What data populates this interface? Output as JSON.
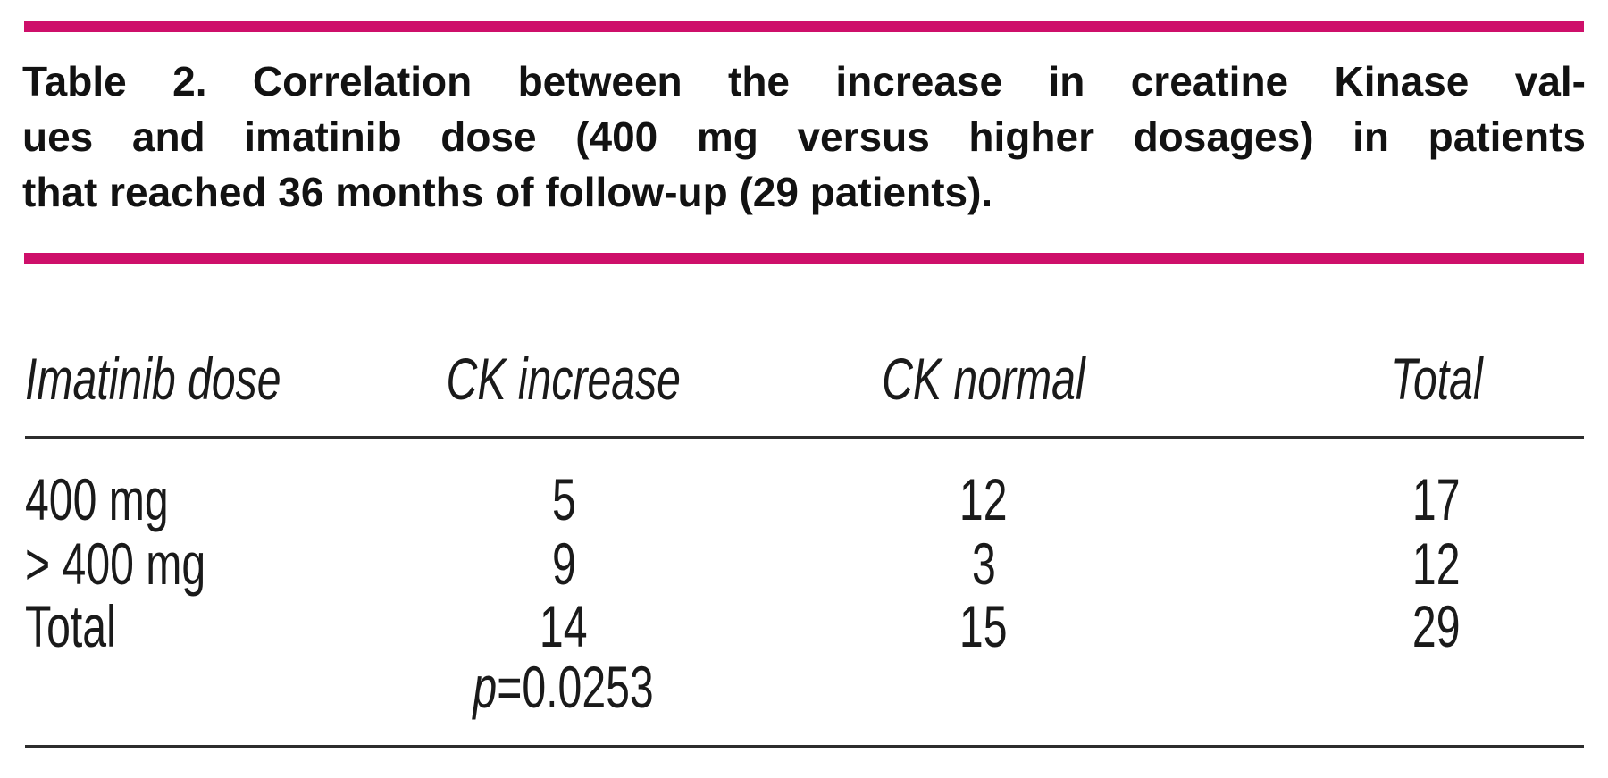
{
  "accent_color": "#CE0F6A",
  "caption": {
    "line1": "Table 2. Correlation between the increase in creatine Kinase val-",
    "line2": "ues and imatinib dose (400 mg versus higher dosages) in patients",
    "line3": "that reached 36 months of follow-up (29 patients).",
    "full_text": "Table 2. Correlation between the increase in creatine Kinase values and imatinib dose (400 mg versus higher dosages) in patients that reached 36 months of follow-up (29 patients)."
  },
  "table": {
    "headers": {
      "col1": "Imatinib dose",
      "col2": "CK increase",
      "col3": "CK normal",
      "col4": "Total"
    },
    "rows": [
      {
        "label": "400 mg",
        "ck_increase": "5",
        "ck_normal": "12",
        "total": "17"
      },
      {
        "label": "> 400 mg",
        "ck_increase": "9",
        "ck_normal": "3",
        "total": "12"
      },
      {
        "label": "Total",
        "ck_increase": "14",
        "ck_normal": "15",
        "total": "29"
      }
    ],
    "p_label": "p",
    "p_rest": "=0.0253",
    "p_value_text": "p=0.0253"
  }
}
